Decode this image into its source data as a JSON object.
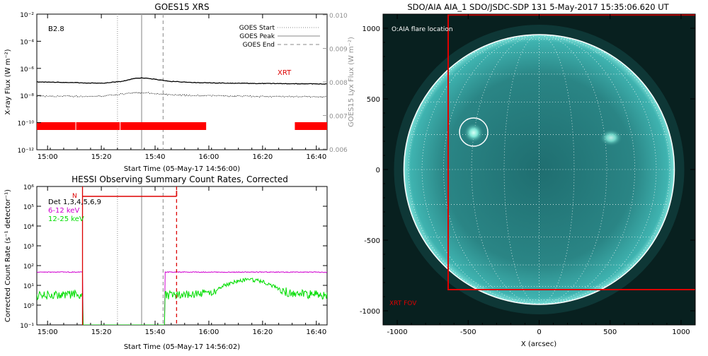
{
  "chart_data": [
    {
      "type": "line",
      "title": "GOES15 XRS",
      "xlabel": "Start Time (05-May-17 14:56:00)",
      "ylabel": "X-ray Flux (W m⁻²)",
      "ylabel2": "GOES15 Lyx Flux (W m⁻²)",
      "x_ticks": [
        "15:00",
        "15:20",
        "15:40",
        "16:00",
        "16:20",
        "16:40"
      ],
      "x_tick_minutes": [
        0,
        20,
        40,
        60,
        80,
        100
      ],
      "xlim_minutes": [
        -4,
        104
      ],
      "y_log_range": [
        -12,
        -2
      ],
      "y_ticks": [
        "10⁻¹²",
        "10⁻¹⁰",
        "10⁻⁸",
        "10⁻⁶",
        "10⁻⁴",
        "10⁻²"
      ],
      "y_tick_exponents": [
        -12,
        -10,
        -8,
        -6,
        -4,
        -2
      ],
      "y2_ticks": [
        "0.006",
        "0.007",
        "0.008",
        "0.009",
        "0.010"
      ],
      "class_label": "B2.8",
      "xrt_label": "XRT",
      "legend": {
        "position": "top-right",
        "items": [
          {
            "label": "GOES Start",
            "style": "dotted",
            "color": "#a0a0a0"
          },
          {
            "label": "GOES Peak",
            "style": "solid",
            "color": "#a0a0a0"
          },
          {
            "label": "GOES End",
            "style": "dashed",
            "color": "#a0a0a0"
          }
        ]
      },
      "markers_minutes": {
        "start": 26,
        "peak": 35,
        "end": 43
      },
      "series": [
        {
          "name": "",
          "color": "#000000",
          "x": [
            -4,
            10,
            20,
            28,
            32,
            35,
            40,
            45,
            55,
            70,
            85,
            104
          ],
          "log_y": [
            -7.0,
            -7.05,
            -7.1,
            -6.95,
            -6.75,
            -6.7,
            -6.8,
            -6.95,
            -7.05,
            -7.1,
            -7.12,
            -7.15
          ]
        },
        {
          "name": "",
          "color": "#000000",
          "dotted": true,
          "x": [
            -4,
            10,
            20,
            28,
            32,
            35,
            40,
            45,
            55,
            70,
            85,
            104
          ],
          "log_y": [
            -8.05,
            -8.05,
            -8.05,
            -7.9,
            -7.8,
            -7.8,
            -7.85,
            -7.95,
            -8.0,
            -8.05,
            -8.08,
            -8.1
          ]
        }
      ],
      "xrt_intervals_minutes": [
        [
          -4,
          59
        ],
        [
          92,
          104
        ]
      ],
      "xrt_gap_minutes": [
        10.5,
        27
      ]
    },
    {
      "type": "line",
      "title": "HESSI Observing Summary Count Rates, Corrected",
      "xlabel": "Start Time (05-May-17 14:56:02)",
      "ylabel": "Corrected Count Rate (s⁻¹ detector⁻¹)",
      "x_ticks": [
        "15:00",
        "15:20",
        "15:40",
        "16:00",
        "16:20",
        "16:40"
      ],
      "x_tick_minutes": [
        0,
        20,
        40,
        60,
        80,
        100
      ],
      "xlim_minutes": [
        -4,
        104
      ],
      "y_log_range": [
        -1,
        6
      ],
      "y_ticks": [
        "10⁻¹",
        "10⁰",
        "10¹",
        "10²",
        "10³",
        "10⁴",
        "10⁵",
        "10⁶"
      ],
      "y_tick_exponents": [
        -1,
        0,
        1,
        2,
        3,
        4,
        5,
        6
      ],
      "detectors_label": "Det 1,3,4,5,6,9",
      "night_label": "N",
      "night_interval_minutes": [
        13,
        48
      ],
      "legend": [
        {
          "label": "6-12 keV",
          "color": "#d000d0"
        },
        {
          "label": "12-25 keV",
          "color": "#00dd00"
        }
      ],
      "markers_minutes": {
        "start": 26,
        "peak": 35,
        "end": 43,
        "red_solid": 13,
        "red_dashed": 48
      },
      "series": [
        {
          "name": "6-12 keV",
          "color": "#d000d0",
          "x": [
            -4,
            13,
            13,
            43.5,
            43.5,
            104
          ],
          "log_y": [
            1.67,
            1.67,
            -1,
            -1,
            1.67,
            1.67
          ]
        },
        {
          "name": "12-25 keV",
          "color": "#00dd00",
          "x": [
            -4,
            10,
            13,
            13,
            43.5,
            43.5,
            52,
            60,
            65,
            70,
            75,
            80,
            85,
            90,
            104
          ],
          "log_y": [
            0.5,
            0.55,
            0.55,
            -1,
            -1,
            0.5,
            0.55,
            0.6,
            0.95,
            1.2,
            1.3,
            1.2,
            0.9,
            0.6,
            0.5
          ]
        }
      ]
    },
    {
      "type": "other",
      "title": "SDO/AIA AIA_1 SDO/JSDC-SDP 131  5-May-2017 15:35:06.620 UT",
      "xlabel": "X (arcsec)",
      "x_ticks": [
        "-1000",
        "-500",
        "0",
        "500",
        "1000"
      ],
      "x_tick_values": [
        -1000,
        -500,
        0,
        500,
        1000
      ],
      "y_ticks": [
        "-1000",
        "-500",
        "0",
        "500",
        "1000"
      ],
      "y_tick_values": [
        -1000,
        -500,
        0,
        500,
        1000
      ],
      "xlim": [
        -1100,
        1100
      ],
      "ylim": [
        -1100,
        1100
      ],
      "flare_label": "O:AIA flare location",
      "fov_label": "XRT FOV",
      "flare_location": [
        -460,
        260
      ],
      "flare_circle_radius": 100,
      "xrt_fov_x_min": -630,
      "xrt_fov_y_min": -850,
      "sun_radius_arcsec": 950,
      "colors": {
        "disk": "#2d9696",
        "fov": "#dd0000",
        "limb": "#ffffff"
      }
    }
  ]
}
